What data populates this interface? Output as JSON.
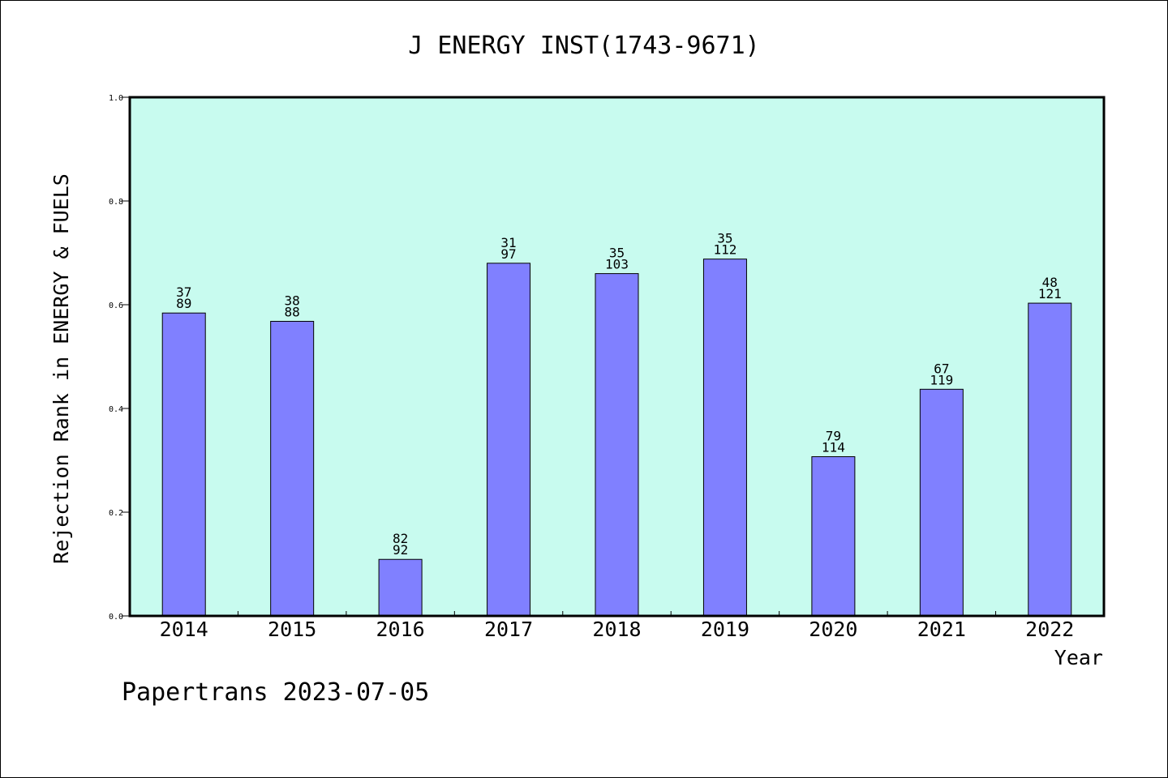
{
  "chart_data": {
    "type": "bar",
    "title": "J ENERGY INST(1743-9671)",
    "ylabel": "Rejection Rank in ENERGY & FUELS",
    "xlabel": "Year",
    "ylim": [
      0,
      1.0
    ],
    "yticks": [
      "0.0",
      "0.2",
      "0.4",
      "0.6",
      "0.8",
      "1.0"
    ],
    "yticks_values": [
      0,
      0.2,
      0.4,
      0.6,
      0.8,
      1.0
    ],
    "categories": [
      "2014",
      "2015",
      "2016",
      "2017",
      "2018",
      "2019",
      "2020",
      "2021",
      "2022"
    ],
    "values": [
      0.584,
      0.568,
      0.109,
      0.68,
      0.66,
      0.688,
      0.307,
      0.437,
      0.603
    ],
    "label_top": [
      "37",
      "38",
      "82",
      "31",
      "35",
      "35",
      "79",
      "67",
      "48"
    ],
    "label_bottom": [
      "89",
      "88",
      "92",
      "97",
      "103",
      "112",
      "114",
      "119",
      "121"
    ],
    "grid": false,
    "colors": {
      "plot_background": "#c8fbef",
      "bar_fill": "#8080ff",
      "bar_stroke": "#000000"
    }
  },
  "footer": "Papertrans 2023-07-05"
}
